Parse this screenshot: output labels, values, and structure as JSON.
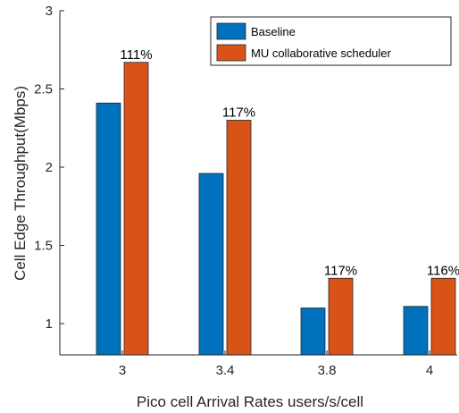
{
  "chart_data": {
    "type": "bar",
    "categories": [
      "3",
      "3.4",
      "3.8",
      "4"
    ],
    "series": [
      {
        "name": "Baseline",
        "values": [
          2.41,
          1.96,
          1.1,
          1.11
        ],
        "color": "#0072BD"
      },
      {
        "name": "MU collaborative scheduler",
        "values": [
          2.67,
          2.3,
          1.29,
          1.29
        ],
        "color": "#D95319"
      }
    ],
    "data_labels": [
      "111%",
      "117%",
      "117%",
      "116%"
    ],
    "xlabel": "Pico cell Arrival Rates users/s/cell",
    "ylabel": "Cell Edge Throughput(Mbps)",
    "ylim": [
      0.8,
      3
    ],
    "yticks": [
      1,
      1.5,
      2,
      2.5,
      3
    ],
    "grid": false,
    "legend_position": "top-right"
  }
}
